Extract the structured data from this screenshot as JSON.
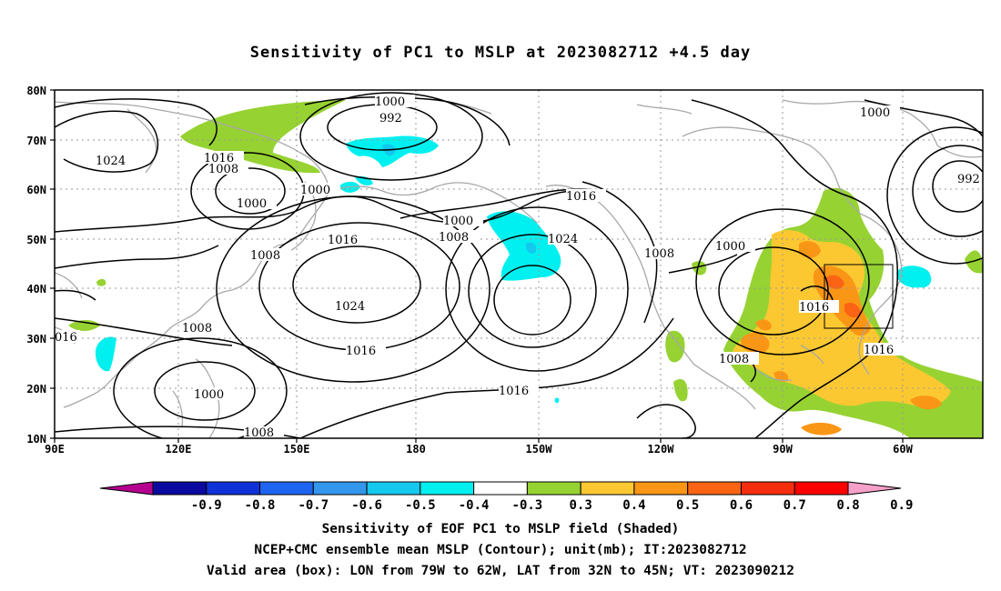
{
  "title": "Sensitivity of PC1 to MSLP at 2023082712 +4.5 day",
  "map": {
    "lat_labels": [
      "80N",
      "70N",
      "60N",
      "50N",
      "40N",
      "30N",
      "20N",
      "10N"
    ],
    "lon_labels": [
      "90E",
      "120E",
      "150E",
      "180",
      "150W",
      "120W",
      "90W",
      "60W"
    ],
    "contour_labels": [
      {
        "text": "1000"
      },
      {
        "text": "992"
      },
      {
        "text": "1024"
      },
      {
        "text": "1016"
      },
      {
        "text": "1008"
      },
      {
        "text": "1000"
      },
      {
        "text": "1000"
      },
      {
        "text": "1016"
      },
      {
        "text": "1000"
      },
      {
        "text": "1008"
      },
      {
        "text": "1016"
      },
      {
        "text": "1024"
      },
      {
        "text": "1008"
      },
      {
        "text": "1008"
      },
      {
        "text": "1000"
      },
      {
        "text": "1000"
      },
      {
        "text": "992"
      },
      {
        "text": "1024"
      },
      {
        "text": "016"
      },
      {
        "text": "1008"
      },
      {
        "text": "1016"
      },
      {
        "text": "1016"
      },
      {
        "text": "1000"
      },
      {
        "text": "1008"
      },
      {
        "text": "1016"
      },
      {
        "text": "1008"
      },
      {
        "text": "1016"
      }
    ],
    "valid_box": {
      "lon_from": "79W",
      "lon_to": "62W",
      "lat_from": "32N",
      "lat_to": "45N"
    }
  },
  "colorbar": {
    "colors": [
      "#b5008f",
      "#0a0aa0",
      "#0f32d8",
      "#1e64f0",
      "#3296ec",
      "#14c8ee",
      "#00f0f0",
      "#ffffff",
      "#96d232",
      "#fcc832",
      "#fa9616",
      "#fa6414",
      "#f52d0f",
      "#ff0000",
      "#f5a0c8"
    ],
    "labels": [
      "-0.9",
      "-0.8",
      "-0.7",
      "-0.6",
      "-0.5",
      "-0.4",
      "-0.3",
      "0.3",
      "0.4",
      "0.5",
      "0.6",
      "0.7",
      "0.8",
      "0.9"
    ]
  },
  "captions": {
    "line1": "Sensitivity of EOF PC1 to MSLP field (Shaded)",
    "line2": "NCEP+CMC ensemble mean MSLP (Contour); unit(mb); IT:2023082712",
    "line3": "Valid area (box): LON from 79W to 62W, LAT from 32N to 45N; VT: 2023090212"
  }
}
